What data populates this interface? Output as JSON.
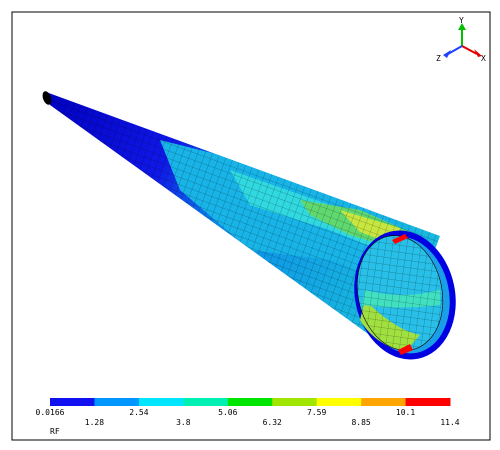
{
  "triad": {
    "y": "Y",
    "z": "Z",
    "x": "X"
  },
  "legend": {
    "colors": [
      "#1010f0",
      "#0096ff",
      "#00e6ff",
      "#00f0b4",
      "#00e600",
      "#a0e600",
      "#ffff00",
      "#ffa500",
      "#ff0000"
    ],
    "labels": [
      "0.0166",
      "1.28",
      "2.54",
      "3.8",
      "5.06",
      "6.32",
      "7.59",
      "8.85",
      "10.1",
      "11.4"
    ],
    "variable": "RF"
  }
}
